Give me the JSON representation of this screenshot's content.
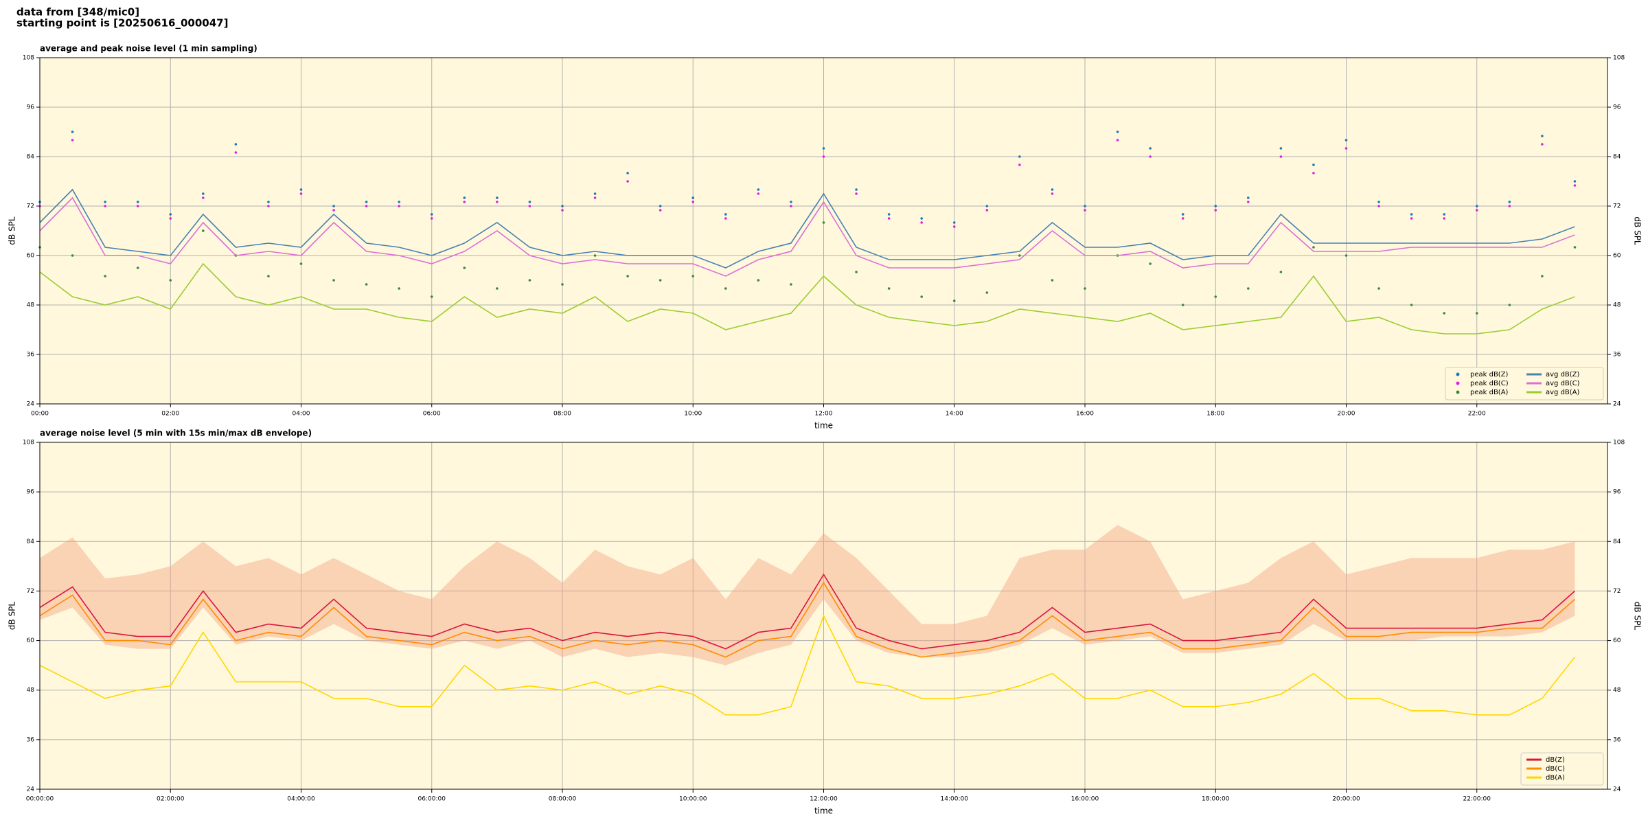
{
  "header": {
    "line1": "data from [348/mic0]",
    "line2": "starting point is [20250616_000047]"
  },
  "chart_data": [
    {
      "type": "line",
      "title": "average and peak noise level (1 min sampling)",
      "xlabel": "time",
      "ylabel": "dB SPL",
      "x": [
        0,
        30,
        60,
        90,
        120,
        150,
        180,
        210,
        240,
        270,
        300,
        330,
        360,
        390,
        420,
        450,
        480,
        510,
        540,
        570,
        600,
        630,
        660,
        690,
        720,
        750,
        780,
        810,
        840,
        870,
        900,
        930,
        960,
        990,
        1020,
        1050,
        1080,
        1110,
        1140,
        1170,
        1200,
        1230,
        1260,
        1290,
        1320,
        1350,
        1380,
        1410
      ],
      "xlim": [
        0,
        1440
      ],
      "xticks": [
        {
          "value": 0,
          "label": "00:00"
        },
        {
          "value": 120,
          "label": "02:00"
        },
        {
          "value": 240,
          "label": "04:00"
        },
        {
          "value": 360,
          "label": "06:00"
        },
        {
          "value": 480,
          "label": "08:00"
        },
        {
          "value": 600,
          "label": "10:00"
        },
        {
          "value": 720,
          "label": "12:00"
        },
        {
          "value": 840,
          "label": "14:00"
        },
        {
          "value": 960,
          "label": "16:00"
        },
        {
          "value": 1080,
          "label": "18:00"
        },
        {
          "value": 1200,
          "label": "20:00"
        },
        {
          "value": 1320,
          "label": "22:00"
        }
      ],
      "ylim": [
        24,
        108
      ],
      "yticks": [
        24,
        36,
        48,
        60,
        72,
        84,
        96,
        108
      ],
      "grid": true,
      "legend": "lower right",
      "legend_columns": 2,
      "series": [
        {
          "name": "peak dB(Z)",
          "color": "#1f77b4",
          "style": "points",
          "values": [
            73,
            90,
            73,
            73,
            70,
            75,
            87,
            73,
            76,
            72,
            73,
            73,
            70,
            74,
            74,
            73,
            72,
            75,
            80,
            72,
            74,
            70,
            76,
            73,
            86,
            76,
            70,
            69,
            68,
            72,
            84,
            76,
            72,
            90,
            86,
            70,
            72,
            74,
            86,
            82,
            88,
            73,
            70,
            70,
            72,
            73,
            89,
            78
          ]
        },
        {
          "name": "peak dB(C)",
          "color": "#e020e0",
          "style": "points",
          "values": [
            72,
            88,
            72,
            72,
            69,
            74,
            85,
            72,
            75,
            71,
            72,
            72,
            69,
            73,
            73,
            72,
            71,
            74,
            78,
            71,
            73,
            69,
            75,
            72,
            84,
            75,
            69,
            68,
            67,
            71,
            82,
            75,
            71,
            88,
            84,
            69,
            71,
            73,
            84,
            80,
            86,
            72,
            69,
            69,
            71,
            72,
            87,
            77
          ]
        },
        {
          "name": "peak dB(A)",
          "color": "#3a8a3a",
          "style": "points",
          "values": [
            62,
            60,
            55,
            57,
            54,
            66,
            60,
            55,
            58,
            54,
            53,
            52,
            50,
            57,
            52,
            54,
            53,
            60,
            55,
            54,
            55,
            52,
            54,
            53,
            68,
            56,
            52,
            50,
            49,
            51,
            60,
            54,
            52,
            60,
            58,
            48,
            50,
            52,
            56,
            62,
            60,
            52,
            48,
            46,
            46,
            48,
            55,
            62
          ]
        },
        {
          "name": "avg dB(Z)",
          "color": "#4682b4",
          "style": "line",
          "values": [
            68,
            76,
            62,
            61,
            60,
            70,
            62,
            63,
            62,
            70,
            63,
            62,
            60,
            63,
            68,
            62,
            60,
            61,
            60,
            60,
            60,
            57,
            61,
            63,
            75,
            62,
            59,
            59,
            59,
            60,
            61,
            68,
            62,
            62,
            63,
            59,
            60,
            60,
            70,
            63,
            63,
            63,
            63,
            63,
            63,
            63,
            64,
            67
          ]
        },
        {
          "name": "avg dB(C)",
          "color": "#da70d6",
          "style": "line",
          "values": [
            66,
            74,
            60,
            60,
            58,
            68,
            60,
            61,
            60,
            68,
            61,
            60,
            58,
            61,
            66,
            60,
            58,
            59,
            58,
            58,
            58,
            55,
            59,
            61,
            73,
            60,
            57,
            57,
            57,
            58,
            59,
            66,
            60,
            60,
            61,
            57,
            58,
            58,
            68,
            61,
            61,
            61,
            62,
            62,
            62,
            62,
            62,
            65
          ]
        },
        {
          "name": "avg dB(A)",
          "color": "#9acd32",
          "style": "line",
          "values": [
            56,
            50,
            48,
            50,
            47,
            58,
            50,
            48,
            50,
            47,
            47,
            45,
            44,
            50,
            45,
            47,
            46,
            50,
            44,
            47,
            46,
            42,
            44,
            46,
            55,
            48,
            45,
            44,
            43,
            44,
            47,
            46,
            45,
            44,
            46,
            42,
            43,
            44,
            45,
            55,
            44,
            45,
            42,
            41,
            41,
            42,
            47,
            50
          ]
        }
      ]
    },
    {
      "type": "line",
      "title": "average noise level (5 min with 15s min/max dB envelope)",
      "xlabel": "time",
      "ylabel": "dB SPL",
      "x": [
        0,
        30,
        60,
        90,
        120,
        150,
        180,
        210,
        240,
        270,
        300,
        330,
        360,
        390,
        420,
        450,
        480,
        510,
        540,
        570,
        600,
        630,
        660,
        690,
        720,
        750,
        780,
        810,
        840,
        870,
        900,
        930,
        960,
        990,
        1020,
        1050,
        1080,
        1110,
        1140,
        1170,
        1200,
        1230,
        1260,
        1290,
        1320,
        1350,
        1380,
        1410
      ],
      "xlim": [
        0,
        1440
      ],
      "xticks": [
        {
          "value": 0,
          "label": "00:00:00"
        },
        {
          "value": 120,
          "label": "02:00:00"
        },
        {
          "value": 240,
          "label": "04:00:00"
        },
        {
          "value": 360,
          "label": "06:00:00"
        },
        {
          "value": 480,
          "label": "08:00:00"
        },
        {
          "value": 600,
          "label": "10:00:00"
        },
        {
          "value": 720,
          "label": "12:00:00"
        },
        {
          "value": 840,
          "label": "14:00:00"
        },
        {
          "value": 960,
          "label": "16:00:00"
        },
        {
          "value": 1080,
          "label": "18:00:00"
        },
        {
          "value": 1200,
          "label": "20:00:00"
        },
        {
          "value": 1320,
          "label": "22:00:00"
        }
      ],
      "ylim": [
        24,
        108
      ],
      "yticks": [
        24,
        36,
        48,
        60,
        72,
        84,
        96,
        108
      ],
      "grid": true,
      "legend": "lower right",
      "legend_columns": 1,
      "envelope": {
        "color": "#f4a582",
        "max": [
          80,
          85,
          75,
          76,
          78,
          84,
          78,
          80,
          76,
          80,
          76,
          72,
          70,
          78,
          84,
          80,
          74,
          82,
          78,
          76,
          80,
          70,
          80,
          76,
          86,
          80,
          72,
          64,
          64,
          66,
          80,
          82,
          82,
          88,
          84,
          70,
          72,
          74,
          80,
          84,
          76,
          78,
          80,
          80,
          80,
          82,
          82,
          84
        ],
        "min": [
          65,
          68,
          59,
          58,
          58,
          68,
          59,
          61,
          60,
          64,
          60,
          59,
          58,
          60,
          58,
          60,
          56,
          58,
          56,
          57,
          56,
          54,
          57,
          59,
          70,
          60,
          57,
          56,
          56,
          57,
          59,
          63,
          59,
          60,
          61,
          57,
          57,
          58,
          59,
          64,
          60,
          60,
          60,
          61,
          61,
          61,
          62,
          66
        ]
      },
      "series": [
        {
          "name": "dB(Z)",
          "color": "#dc143c",
          "style": "line",
          "values": [
            68,
            73,
            62,
            61,
            61,
            72,
            62,
            64,
            63,
            70,
            63,
            62,
            61,
            64,
            62,
            63,
            60,
            62,
            61,
            62,
            61,
            58,
            62,
            63,
            76,
            63,
            60,
            58,
            59,
            60,
            62,
            68,
            62,
            63,
            64,
            60,
            60,
            61,
            62,
            70,
            63,
            63,
            63,
            63,
            63,
            64,
            65,
            72
          ]
        },
        {
          "name": "dB(C)",
          "color": "#ff8c00",
          "style": "line",
          "values": [
            66,
            71,
            60,
            60,
            59,
            70,
            60,
            62,
            61,
            68,
            61,
            60,
            59,
            62,
            60,
            61,
            58,
            60,
            59,
            60,
            59,
            56,
            60,
            61,
            74,
            61,
            58,
            56,
            57,
            58,
            60,
            66,
            60,
            61,
            62,
            58,
            58,
            59,
            60,
            68,
            61,
            61,
            62,
            62,
            62,
            63,
            63,
            70
          ]
        },
        {
          "name": "dB(A)",
          "color": "#ffd700",
          "style": "line",
          "values": [
            54,
            50,
            46,
            48,
            49,
            62,
            50,
            50,
            50,
            46,
            46,
            44,
            44,
            54,
            48,
            49,
            48,
            50,
            47,
            49,
            47,
            42,
            42,
            44,
            66,
            50,
            49,
            46,
            46,
            47,
            49,
            52,
            46,
            46,
            48,
            44,
            44,
            45,
            47,
            52,
            46,
            46,
            43,
            43,
            42,
            42,
            46,
            56
          ]
        }
      ]
    }
  ]
}
